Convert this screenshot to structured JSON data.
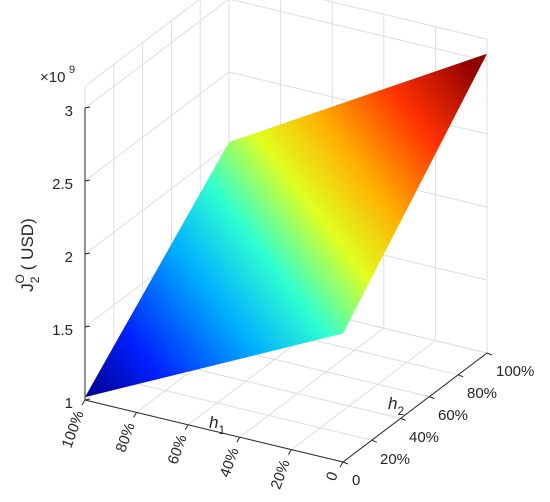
{
  "chart_data": {
    "type": "surface",
    "zlabel_main": "J",
    "zlabel_sub": "2",
    "zlabel_sup": "O",
    "zlabel_unit": "( USD)",
    "z_exponent_base": "×10",
    "z_exponent_power": "9",
    "xlabel_main": "h",
    "xlabel_sub": "1",
    "ylabel_main": "h",
    "ylabel_sub": "2",
    "zlim": [
      1,
      3
    ],
    "z_ticks": [
      "1",
      "1.5",
      "2",
      "2.5",
      "3"
    ],
    "h1_ticks": [
      "100%",
      "80%",
      "60%",
      "40%",
      "20%",
      "0"
    ],
    "h2_ticks": [
      "0",
      "20%",
      "40%",
      "60%",
      "80%",
      "100%"
    ],
    "grid": true,
    "colormap": "jet",
    "corners": [
      {
        "h1": "100%",
        "h2": "0",
        "z": 1.02
      },
      {
        "h1": "0",
        "h2": "0",
        "z": 1.88
      },
      {
        "h1": "100%",
        "h2": "100%",
        "z": 2.02
      },
      {
        "h1": "0",
        "h2": "100%",
        "z": 3.05
      }
    ]
  }
}
